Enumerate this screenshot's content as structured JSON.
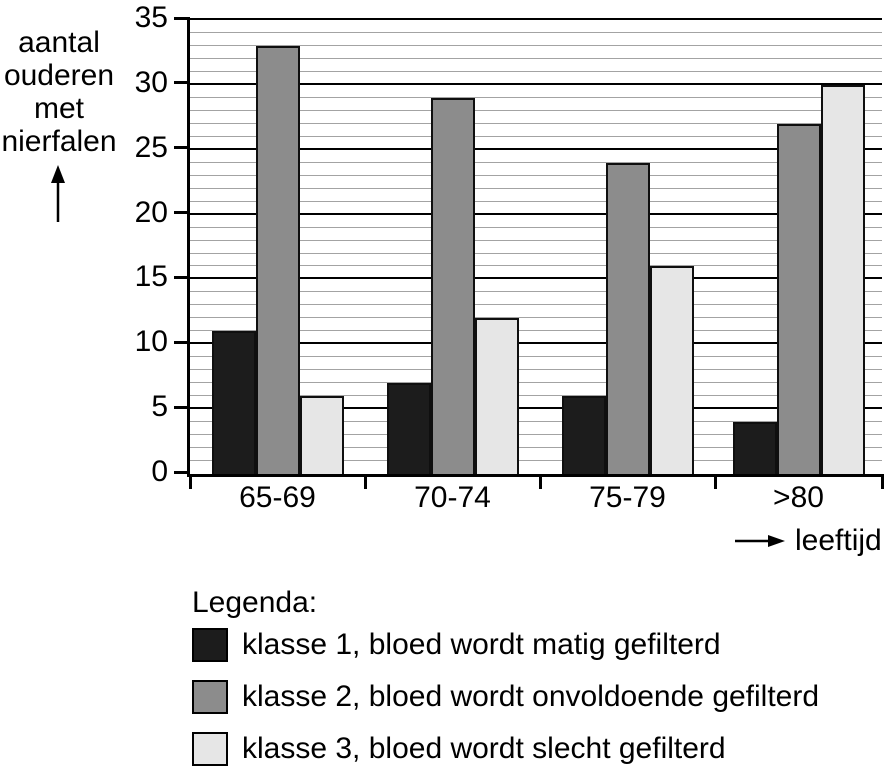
{
  "chart_data": {
    "type": "bar",
    "title": "",
    "categories": [
      "65-69",
      "70-74",
      "75-79",
      ">80"
    ],
    "series": [
      {
        "name": "klasse 1, bloed wordt matig gefilterd",
        "color": "#1c1c1c",
        "values": [
          11,
          7,
          6,
          4
        ]
      },
      {
        "name": "klasse 2, bloed wordt onvoldoende gefilterd",
        "color": "#8c8c8c",
        "values": [
          33,
          29,
          24,
          27
        ]
      },
      {
        "name": "klasse 3, bloed wordt slecht gefilterd",
        "color": "#e6e6e6",
        "values": [
          6,
          12,
          16,
          30
        ]
      }
    ],
    "ylabel_lines": [
      "aantal",
      "ouderen",
      "met",
      "nierfalen"
    ],
    "xlabel": "leeftijd",
    "ylim": [
      0,
      35
    ],
    "y_ticks": [
      0,
      5,
      10,
      15,
      20,
      25,
      30,
      35
    ],
    "y_major_step": 5,
    "y_minor_step": 1,
    "grid": true,
    "legend_title": "Legenda:",
    "legend_position": "bottom",
    "colors": {
      "axis": "#000000",
      "minor_gridline": "#a3a3a3",
      "major_gridline": "#000000",
      "background": "#ffffff"
    }
  }
}
